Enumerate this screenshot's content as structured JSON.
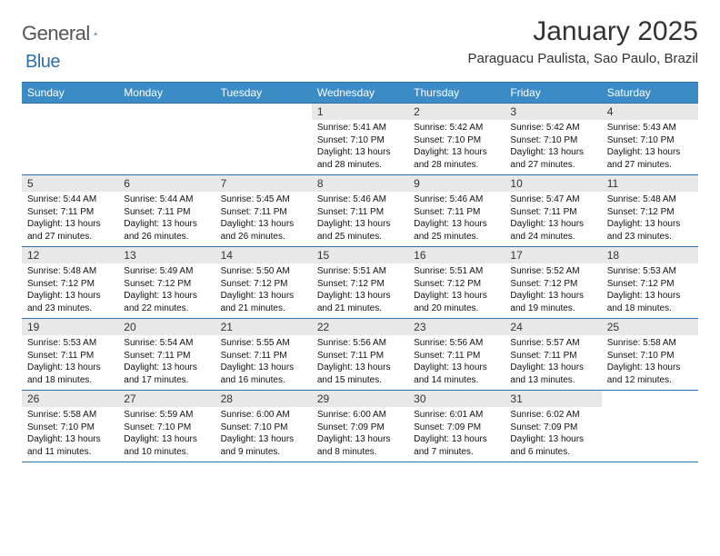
{
  "logo": {
    "text1": "General",
    "text2": "Blue"
  },
  "title": "January 2025",
  "location": "Paraguacu Paulista, Sao Paulo, Brazil",
  "colors": {
    "header_bg": "#3b8bc6",
    "header_border": "#2f6fa7",
    "daynum_bg": "#e8e8e8",
    "page_bg": "#ffffff",
    "logo_gray": "#555555",
    "logo_blue": "#2f6fa7"
  },
  "day_names": [
    "Sunday",
    "Monday",
    "Tuesday",
    "Wednesday",
    "Thursday",
    "Friday",
    "Saturday"
  ],
  "weeks": [
    [
      {
        "n": "",
        "sr": "",
        "ss": "",
        "dl": ""
      },
      {
        "n": "",
        "sr": "",
        "ss": "",
        "dl": ""
      },
      {
        "n": "",
        "sr": "",
        "ss": "",
        "dl": ""
      },
      {
        "n": "1",
        "sr": "Sunrise: 5:41 AM",
        "ss": "Sunset: 7:10 PM",
        "dl": "Daylight: 13 hours and 28 minutes."
      },
      {
        "n": "2",
        "sr": "Sunrise: 5:42 AM",
        "ss": "Sunset: 7:10 PM",
        "dl": "Daylight: 13 hours and 28 minutes."
      },
      {
        "n": "3",
        "sr": "Sunrise: 5:42 AM",
        "ss": "Sunset: 7:10 PM",
        "dl": "Daylight: 13 hours and 27 minutes."
      },
      {
        "n": "4",
        "sr": "Sunrise: 5:43 AM",
        "ss": "Sunset: 7:10 PM",
        "dl": "Daylight: 13 hours and 27 minutes."
      }
    ],
    [
      {
        "n": "5",
        "sr": "Sunrise: 5:44 AM",
        "ss": "Sunset: 7:11 PM",
        "dl": "Daylight: 13 hours and 27 minutes."
      },
      {
        "n": "6",
        "sr": "Sunrise: 5:44 AM",
        "ss": "Sunset: 7:11 PM",
        "dl": "Daylight: 13 hours and 26 minutes."
      },
      {
        "n": "7",
        "sr": "Sunrise: 5:45 AM",
        "ss": "Sunset: 7:11 PM",
        "dl": "Daylight: 13 hours and 26 minutes."
      },
      {
        "n": "8",
        "sr": "Sunrise: 5:46 AM",
        "ss": "Sunset: 7:11 PM",
        "dl": "Daylight: 13 hours and 25 minutes."
      },
      {
        "n": "9",
        "sr": "Sunrise: 5:46 AM",
        "ss": "Sunset: 7:11 PM",
        "dl": "Daylight: 13 hours and 25 minutes."
      },
      {
        "n": "10",
        "sr": "Sunrise: 5:47 AM",
        "ss": "Sunset: 7:11 PM",
        "dl": "Daylight: 13 hours and 24 minutes."
      },
      {
        "n": "11",
        "sr": "Sunrise: 5:48 AM",
        "ss": "Sunset: 7:12 PM",
        "dl": "Daylight: 13 hours and 23 minutes."
      }
    ],
    [
      {
        "n": "12",
        "sr": "Sunrise: 5:48 AM",
        "ss": "Sunset: 7:12 PM",
        "dl": "Daylight: 13 hours and 23 minutes."
      },
      {
        "n": "13",
        "sr": "Sunrise: 5:49 AM",
        "ss": "Sunset: 7:12 PM",
        "dl": "Daylight: 13 hours and 22 minutes."
      },
      {
        "n": "14",
        "sr": "Sunrise: 5:50 AM",
        "ss": "Sunset: 7:12 PM",
        "dl": "Daylight: 13 hours and 21 minutes."
      },
      {
        "n": "15",
        "sr": "Sunrise: 5:51 AM",
        "ss": "Sunset: 7:12 PM",
        "dl": "Daylight: 13 hours and 21 minutes."
      },
      {
        "n": "16",
        "sr": "Sunrise: 5:51 AM",
        "ss": "Sunset: 7:12 PM",
        "dl": "Daylight: 13 hours and 20 minutes."
      },
      {
        "n": "17",
        "sr": "Sunrise: 5:52 AM",
        "ss": "Sunset: 7:12 PM",
        "dl": "Daylight: 13 hours and 19 minutes."
      },
      {
        "n": "18",
        "sr": "Sunrise: 5:53 AM",
        "ss": "Sunset: 7:12 PM",
        "dl": "Daylight: 13 hours and 18 minutes."
      }
    ],
    [
      {
        "n": "19",
        "sr": "Sunrise: 5:53 AM",
        "ss": "Sunset: 7:11 PM",
        "dl": "Daylight: 13 hours and 18 minutes."
      },
      {
        "n": "20",
        "sr": "Sunrise: 5:54 AM",
        "ss": "Sunset: 7:11 PM",
        "dl": "Daylight: 13 hours and 17 minutes."
      },
      {
        "n": "21",
        "sr": "Sunrise: 5:55 AM",
        "ss": "Sunset: 7:11 PM",
        "dl": "Daylight: 13 hours and 16 minutes."
      },
      {
        "n": "22",
        "sr": "Sunrise: 5:56 AM",
        "ss": "Sunset: 7:11 PM",
        "dl": "Daylight: 13 hours and 15 minutes."
      },
      {
        "n": "23",
        "sr": "Sunrise: 5:56 AM",
        "ss": "Sunset: 7:11 PM",
        "dl": "Daylight: 13 hours and 14 minutes."
      },
      {
        "n": "24",
        "sr": "Sunrise: 5:57 AM",
        "ss": "Sunset: 7:11 PM",
        "dl": "Daylight: 13 hours and 13 minutes."
      },
      {
        "n": "25",
        "sr": "Sunrise: 5:58 AM",
        "ss": "Sunset: 7:10 PM",
        "dl": "Daylight: 13 hours and 12 minutes."
      }
    ],
    [
      {
        "n": "26",
        "sr": "Sunrise: 5:58 AM",
        "ss": "Sunset: 7:10 PM",
        "dl": "Daylight: 13 hours and 11 minutes."
      },
      {
        "n": "27",
        "sr": "Sunrise: 5:59 AM",
        "ss": "Sunset: 7:10 PM",
        "dl": "Daylight: 13 hours and 10 minutes."
      },
      {
        "n": "28",
        "sr": "Sunrise: 6:00 AM",
        "ss": "Sunset: 7:10 PM",
        "dl": "Daylight: 13 hours and 9 minutes."
      },
      {
        "n": "29",
        "sr": "Sunrise: 6:00 AM",
        "ss": "Sunset: 7:09 PM",
        "dl": "Daylight: 13 hours and 8 minutes."
      },
      {
        "n": "30",
        "sr": "Sunrise: 6:01 AM",
        "ss": "Sunset: 7:09 PM",
        "dl": "Daylight: 13 hours and 7 minutes."
      },
      {
        "n": "31",
        "sr": "Sunrise: 6:02 AM",
        "ss": "Sunset: 7:09 PM",
        "dl": "Daylight: 13 hours and 6 minutes."
      },
      {
        "n": "",
        "sr": "",
        "ss": "",
        "dl": ""
      }
    ]
  ]
}
